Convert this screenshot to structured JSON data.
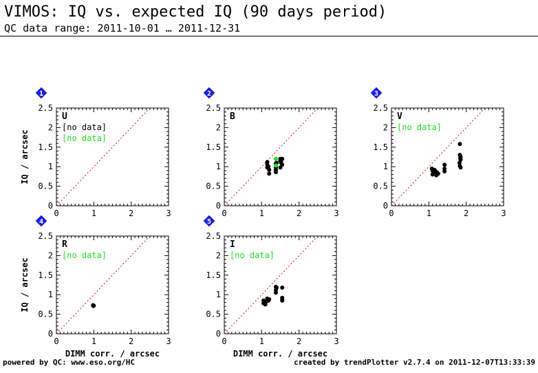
{
  "header": {
    "title": "VIMOS: IQ vs. expected IQ (90 days period)",
    "subtitle": "QC data range: 2011-10-01 … 2011-12-31"
  },
  "footer": {
    "left": "powered by QC: www.eso.org/HC",
    "right": "created by trendPlotter v2.7.4 on 2011-12-07T13:33:39"
  },
  "colors": {
    "points": "#000000",
    "highlight_points": "#22dd22",
    "no_data": "#22dd22",
    "reference_line": "#dd0000",
    "badge": "#1a1aff"
  },
  "chart_data": [
    {
      "type": "scatter",
      "index": "1",
      "panel_label": "U",
      "xlabel": "",
      "ylabel": "IQ / arcsec",
      "xlim": [
        0,
        3
      ],
      "ylim": [
        0,
        2.5
      ],
      "xticks": [
        "0",
        "1",
        "2",
        "3"
      ],
      "yticks": [
        "0",
        "0.5",
        "1",
        "1.5",
        "2",
        "2.5"
      ],
      "reference_line": "y = x",
      "notes": [
        "[no data]",
        "[no data]"
      ],
      "series": [
        {
          "color": "#000000",
          "points": []
        },
        {
          "color": "#22dd22",
          "points": []
        }
      ]
    },
    {
      "type": "scatter",
      "index": "2",
      "panel_label": "B",
      "xlabel": "",
      "ylabel": "",
      "xlim": [
        0,
        3
      ],
      "ylim": [
        0,
        2.5
      ],
      "xticks": [
        "0",
        "1",
        "2",
        "3"
      ],
      "yticks": [
        "0",
        "0.5",
        "1",
        "1.5",
        "2",
        "2.5"
      ],
      "reference_line": "y = x",
      "notes": [],
      "series": [
        {
          "color": "#000000",
          "points": [
            [
              1.15,
              1.12
            ],
            [
              1.15,
              1.05
            ],
            [
              1.15,
              0.98
            ],
            [
              1.2,
              0.92
            ],
            [
              1.2,
              0.82
            ],
            [
              1.18,
              1.0
            ],
            [
              1.38,
              1.08
            ],
            [
              1.38,
              0.98
            ],
            [
              1.38,
              0.92
            ],
            [
              1.38,
              0.86
            ],
            [
              1.4,
              1.1
            ],
            [
              1.5,
              1.2
            ],
            [
              1.5,
              1.15
            ],
            [
              1.52,
              1.1
            ],
            [
              1.55,
              1.05
            ],
            [
              1.5,
              0.98
            ],
            [
              1.55,
              1.2
            ],
            [
              1.52,
              1.12
            ]
          ]
        },
        {
          "color": "#22dd22",
          "points": [
            [
              1.38,
              1.2
            ],
            [
              1.38,
              1.03
            ]
          ]
        }
      ]
    },
    {
      "type": "scatter",
      "index": "3",
      "panel_label": "V",
      "xlabel": "",
      "ylabel": "",
      "xlim": [
        0,
        3
      ],
      "ylim": [
        0,
        2.5
      ],
      "xticks": [
        "0",
        "1",
        "2",
        "3"
      ],
      "yticks": [
        "0",
        "0.5",
        "1",
        "1.5",
        "2",
        "2.5"
      ],
      "reference_line": "y = x",
      "notes": [
        "[no data]"
      ],
      "series": [
        {
          "color": "#000000",
          "points": [
            [
              1.08,
              0.95
            ],
            [
              1.1,
              0.9
            ],
            [
              1.12,
              0.85
            ],
            [
              1.1,
              0.8
            ],
            [
              1.15,
              0.92
            ],
            [
              1.18,
              0.88
            ],
            [
              1.2,
              0.78
            ],
            [
              1.22,
              0.85
            ],
            [
              1.25,
              0.82
            ],
            [
              1.42,
              1.05
            ],
            [
              1.42,
              0.95
            ],
            [
              1.42,
              0.88
            ],
            [
              1.83,
              1.58
            ],
            [
              1.83,
              1.3
            ],
            [
              1.85,
              1.25
            ],
            [
              1.85,
              1.18
            ],
            [
              1.82,
              1.1
            ],
            [
              1.83,
              1.02
            ],
            [
              1.85,
              0.98
            ],
            [
              1.84,
              1.22
            ]
          ]
        }
      ]
    },
    {
      "type": "scatter",
      "index": "4",
      "panel_label": "R",
      "xlabel": "DIMM corr. / arcsec",
      "ylabel": "IQ / arcsec",
      "xlim": [
        0,
        3
      ],
      "ylim": [
        0,
        2.5
      ],
      "xticks": [
        "0",
        "1",
        "2",
        "3"
      ],
      "yticks": [
        "0",
        "0.5",
        "1",
        "1.5",
        "2",
        "2.5"
      ],
      "reference_line": "y = x",
      "notes": [
        "[no data]"
      ],
      "series": [
        {
          "color": "#000000",
          "points": [
            [
              0.98,
              0.73
            ],
            [
              0.99,
              0.71
            ],
            [
              1.0,
              0.72
            ]
          ]
        }
      ]
    },
    {
      "type": "scatter",
      "index": "5",
      "panel_label": "I",
      "xlabel": "DIMM corr. / arcsec",
      "ylabel": "",
      "xlim": [
        0,
        3
      ],
      "ylim": [
        0,
        2.5
      ],
      "xticks": [
        "0",
        "1",
        "2",
        "3"
      ],
      "yticks": [
        "0",
        "0.5",
        "1",
        "1.5",
        "2",
        "2.5"
      ],
      "reference_line": "y = x",
      "notes": [
        "[no data]"
      ],
      "series": [
        {
          "color": "#000000",
          "points": [
            [
              1.05,
              0.85
            ],
            [
              1.05,
              0.78
            ],
            [
              1.08,
              0.8
            ],
            [
              1.1,
              0.75
            ],
            [
              1.12,
              0.82
            ],
            [
              1.15,
              0.9
            ],
            [
              1.18,
              0.85
            ],
            [
              1.2,
              0.88
            ],
            [
              1.38,
              1.2
            ],
            [
              1.38,
              1.12
            ],
            [
              1.38,
              1.05
            ],
            [
              1.4,
              1.18
            ],
            [
              1.55,
              1.18
            ],
            [
              1.55,
              0.92
            ],
            [
              1.55,
              0.88
            ],
            [
              1.55,
              0.85
            ]
          ]
        }
      ]
    }
  ]
}
